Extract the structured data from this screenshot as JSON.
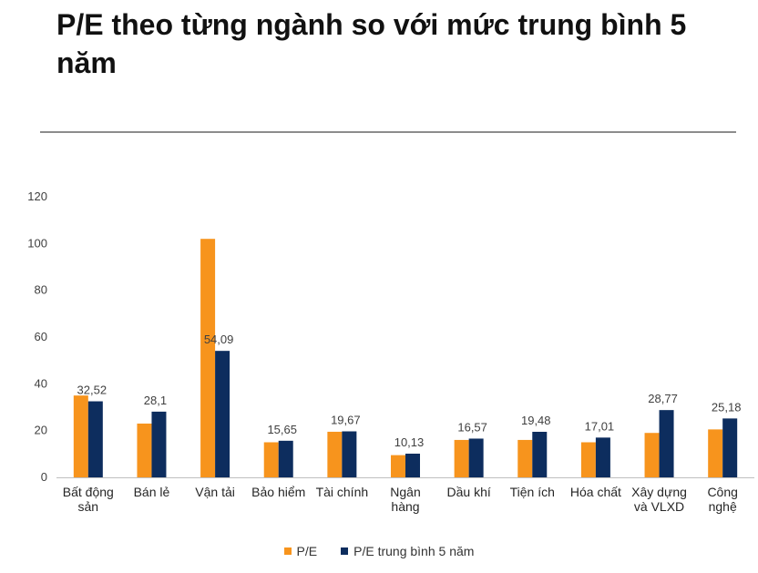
{
  "title": "P/E theo từng ngành so với mức trung bình 5 năm",
  "colors": {
    "pe": "#F7941D",
    "avg": "#0D2D5E",
    "axis": "#BFBFBF",
    "rule": "#8C8C8C"
  },
  "legend": {
    "pe_label": "P/E",
    "avg_label": "P/E trung bình 5 năm"
  },
  "chart_data": {
    "type": "bar",
    "title": "P/E theo từng ngành so với mức trung bình 5 năm",
    "xlabel": "",
    "ylabel": "",
    "ylim": [
      0,
      120
    ],
    "yticks": [
      0,
      20,
      40,
      60,
      80,
      100,
      120
    ],
    "grid": false,
    "legend_position": "bottom",
    "categories": [
      [
        "Bất động",
        "sản"
      ],
      [
        "Bán lẻ"
      ],
      [
        "Vận tải"
      ],
      [
        "Bảo hiểm"
      ],
      [
        "Tài chính"
      ],
      [
        "Ngân",
        "hàng"
      ],
      [
        "Dầu khí"
      ],
      [
        "Tiện ích"
      ],
      [
        "Hóa chất"
      ],
      [
        "Xây dựng",
        "và VLXD"
      ],
      [
        "Công",
        "nghệ"
      ]
    ],
    "series": [
      {
        "name": "P/E",
        "values": [
          35,
          23,
          102,
          15,
          19.5,
          9.5,
          16,
          16,
          15,
          19,
          20.5
        ]
      },
      {
        "name": "P/E trung bình 5 năm",
        "values": [
          32.52,
          28.1,
          54.09,
          15.65,
          19.67,
          10.13,
          16.57,
          19.48,
          17.01,
          28.77,
          25.18
        ]
      }
    ],
    "data_labels": [
      "32,52",
      "28,1",
      "54,09",
      "15,65",
      "19,67",
      "10,13",
      "16,57",
      "19,48",
      "17,01",
      "28,77",
      "25,18"
    ]
  }
}
